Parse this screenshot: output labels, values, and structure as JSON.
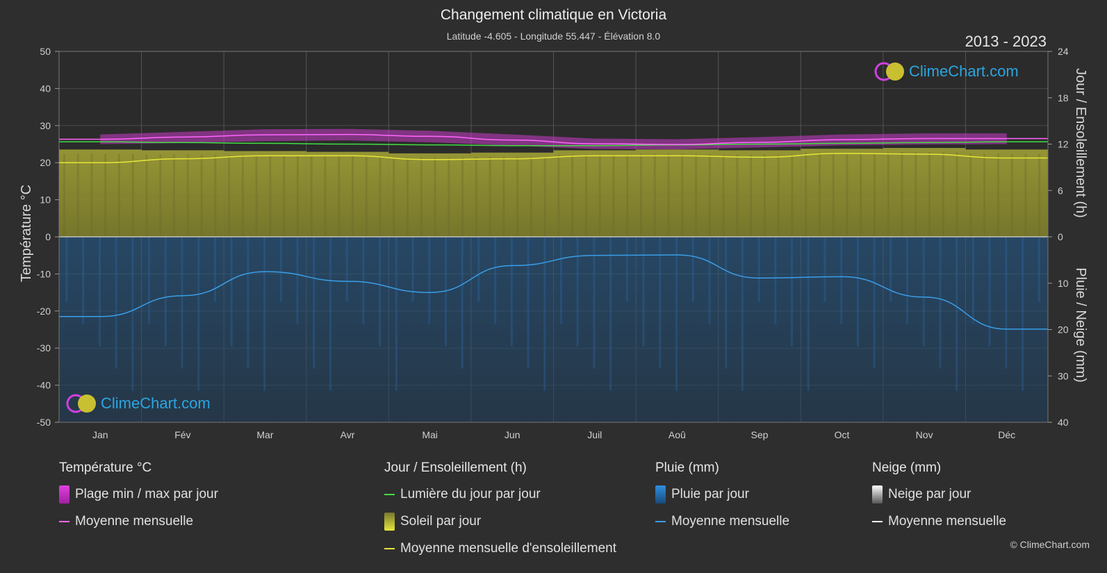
{
  "header": {
    "title": "Changement climatique en Victoria",
    "subtitle": "Latitude -4.605 - Longitude 55.447 - Élévation 8.0",
    "years": "2013 - 2023"
  },
  "logo_text": "ClimeChart.com",
  "copyright": "© ClimeChart.com",
  "colors": {
    "background": "#2e2e2e",
    "temp_band": "#c83cc8",
    "temp_mean": "#ff66ff",
    "daylight": "#44dd44",
    "sunshine_fill": "#8a8a2e",
    "sunshine_mean": "#e6e63a",
    "rain_fill": "#1f5f99",
    "rain_mean": "#3a9ee8",
    "snow_mean": "#ffffff"
  },
  "legend": {
    "temp": {
      "title": "Température °C",
      "range": "Plage min / max par jour",
      "mean": "Moyenne mensuelle"
    },
    "sun": {
      "title": "Jour / Ensoleillement (h)",
      "daylight": "Lumière du jour par jour",
      "sunshine": "Soleil par jour",
      "mean": "Moyenne mensuelle d'ensoleillement"
    },
    "rain": {
      "title": "Pluie (mm)",
      "daily": "Pluie par jour",
      "mean": "Moyenne mensuelle"
    },
    "snow": {
      "title": "Neige (mm)",
      "daily": "Neige par jour",
      "mean": "Moyenne mensuelle"
    }
  },
  "chart_data": {
    "type": "line",
    "months": [
      "Jan",
      "Fév",
      "Mar",
      "Avr",
      "Mai",
      "Jun",
      "Juil",
      "Aoû",
      "Sep",
      "Oct",
      "Nov",
      "Déc"
    ],
    "axes": {
      "left": {
        "label": "Température °C",
        "range": [
          -50,
          50
        ],
        "ticks": [
          50,
          40,
          30,
          20,
          10,
          0,
          -10,
          -20,
          -30,
          -40,
          -50
        ]
      },
      "right_top": {
        "label": "Jour / Ensoleillement (h)",
        "range": [
          0,
          24
        ],
        "ticks": [
          24,
          18,
          12,
          6,
          0
        ]
      },
      "right_bottom": {
        "label": "Pluie / Neige (mm)",
        "range": [
          0,
          40
        ],
        "ticks": [
          0,
          10,
          20,
          30,
          40
        ]
      }
    },
    "grid": true,
    "series": [
      {
        "name": "Moyenne mensuelle",
        "group": "Température °C",
        "values": [
          26.3,
          26.9,
          27.5,
          27.6,
          27.1,
          26.1,
          25.1,
          24.9,
          25.5,
          26.2,
          26.5,
          26.5
        ]
      },
      {
        "name": "Plage min / max par jour",
        "group": "Température °C",
        "min": [
          25.0,
          25.3,
          25.8,
          26.0,
          25.5,
          24.6,
          23.7,
          23.6,
          24.1,
          24.7,
          24.9,
          25.0
        ],
        "max": [
          27.6,
          28.3,
          29.0,
          29.1,
          28.6,
          27.6,
          26.5,
          26.3,
          26.9,
          27.6,
          27.9,
          27.9
        ]
      },
      {
        "name": "Lumière du jour par jour",
        "group": "Jour / Ensoleillement (h)",
        "values": [
          12.3,
          12.2,
          12.1,
          12.0,
          11.9,
          11.8,
          11.8,
          11.9,
          12.0,
          12.1,
          12.2,
          12.3
        ]
      },
      {
        "name": "Soleil par jour",
        "group": "Jour / Ensoleillement (h)",
        "values": [
          11.3,
          11.2,
          11.1,
          11.0,
          10.8,
          10.9,
          11.2,
          11.3,
          11.2,
          11.4,
          11.5,
          11.3
        ]
      },
      {
        "name": "Moyenne mensuelle d'ensoleillement",
        "group": "Jour / Ensoleillement (h)",
        "values": [
          9.6,
          10.1,
          10.5,
          10.5,
          10.0,
          10.1,
          10.5,
          10.5,
          10.3,
          10.8,
          10.7,
          10.2
        ]
      },
      {
        "name": "Moyenne mensuelle",
        "group": "Pluie (mm)",
        "values": [
          17.2,
          12.7,
          7.5,
          9.6,
          12.0,
          6.2,
          4.0,
          3.9,
          8.9,
          8.6,
          13.0,
          19.9
        ]
      },
      {
        "name": "Moyenne mensuelle",
        "group": "Neige (mm)",
        "values": [
          0,
          0,
          0,
          0,
          0,
          0,
          0,
          0,
          0,
          0,
          0,
          0
        ]
      }
    ]
  }
}
